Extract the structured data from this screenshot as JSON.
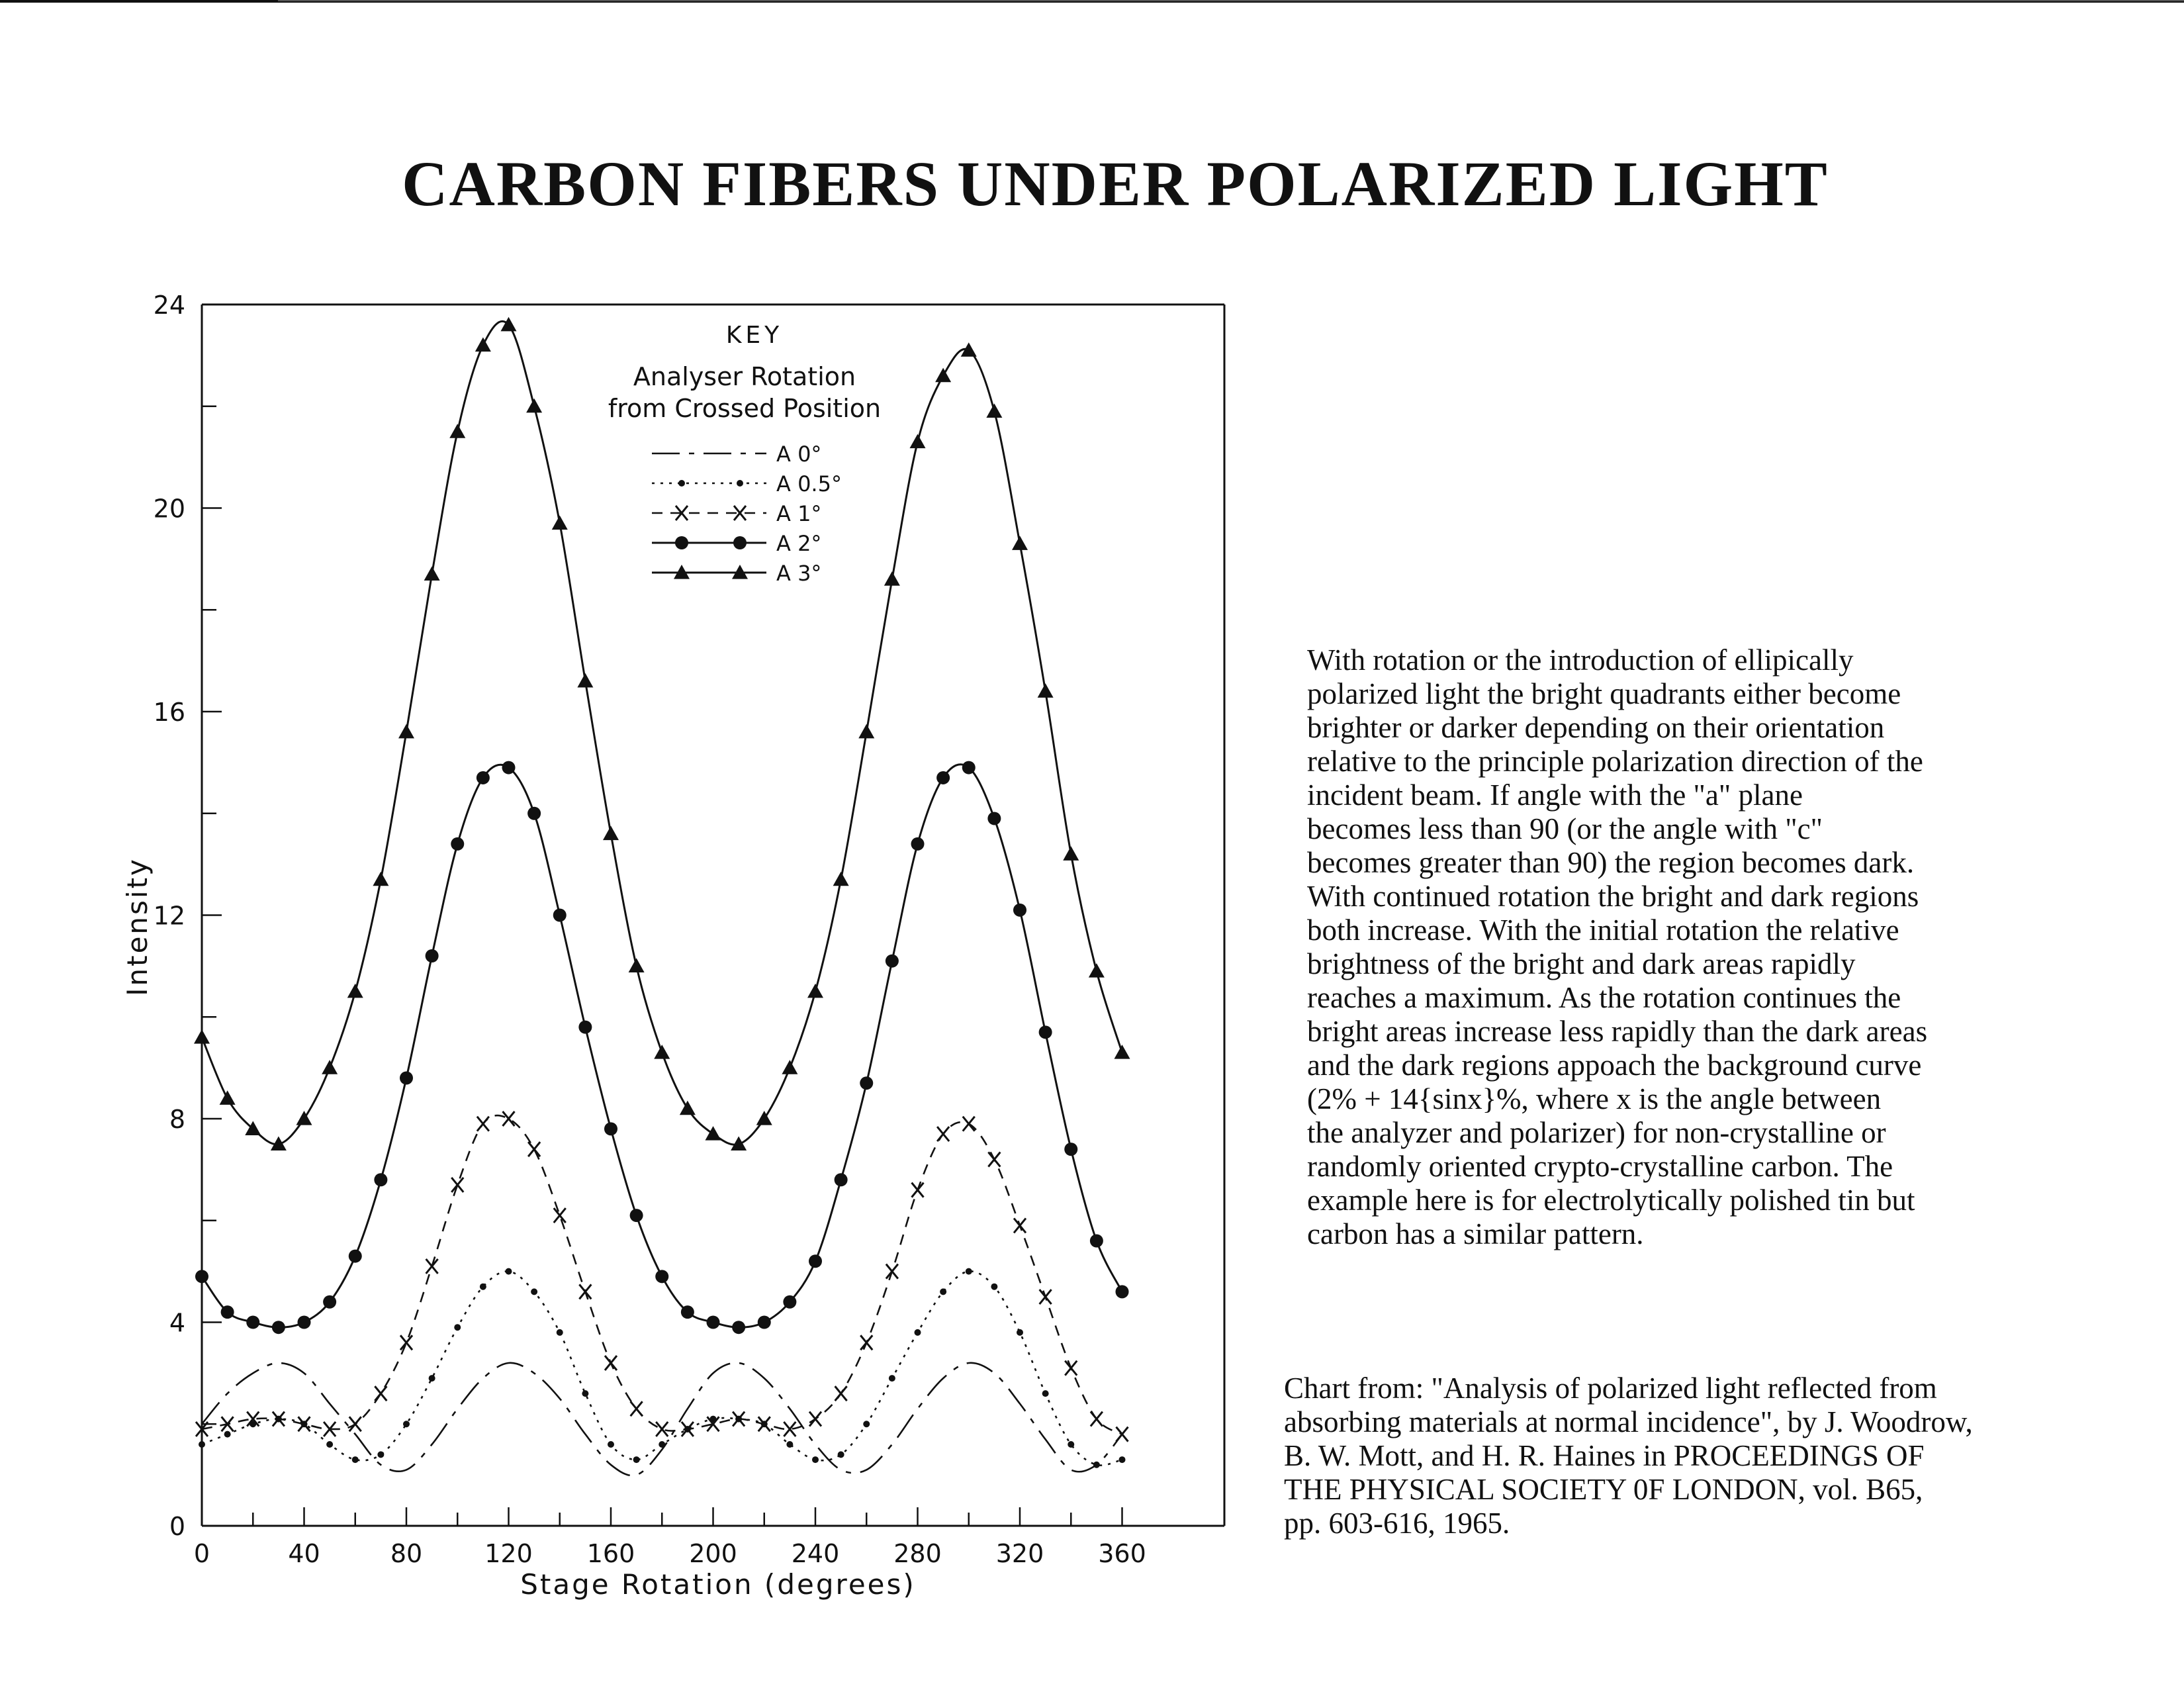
{
  "title": "CARBON FIBERS UNDER POLARIZED LIGHT",
  "description_lines": [
    "With rotation or the introduction of ellipically",
    "polarized light the bright quadrants either become",
    "brighter or darker depending on their orientation",
    "relative to the principle polarization direction of the",
    "incident beam.  If angle with the \"a\" plane",
    "becomes less than 90 (or the angle with \"c\"",
    "becomes greater than 90) the region becomes dark.",
    "With continued rotation the bright and dark regions",
    "both increase.  With the initial rotation the relative",
    "brightness of the bright and dark areas rapidly",
    "reaches a maximum.  As the rotation continues the",
    "bright areas increase less rapidly than the dark areas",
    "and the dark regions appoach the background curve",
    "(2% + 14{sinx}%, where x is the angle between",
    "the analyzer and polarizer) for non-crystalline or",
    "randomly oriented crypto-crystalline carbon.  The",
    "example here is for electrolytically polished tin but",
    "carbon has a similar pattern."
  ],
  "source_lines": [
    "Chart from:  \"Analysis of polarized light reflected from",
    "absorbing materials at normal incidence\", by J. Woodrow,",
    "B. W. Mott, and H. R. Haines in PROCEEDINGS OF",
    "THE PHYSICAL SOCIETY 0F LONDON, vol. B65,",
    "pp. 603-616, 1965."
  ],
  "chart_data": {
    "type": "line",
    "xlabel": "Stage Rotation  (degrees)",
    "ylabel": "Intensity",
    "xlim": [
      0,
      400
    ],
    "ylim": [
      0,
      24
    ],
    "x_ticks": [
      0,
      40,
      80,
      120,
      160,
      200,
      240,
      280,
      320,
      360
    ],
    "x_tick_labels": [
      "0",
      "40",
      "80",
      "120",
      "160",
      "200",
      "240",
      "280",
      "320",
      "360"
    ],
    "y_ticks": [
      0,
      4,
      8,
      12,
      16,
      20,
      24
    ],
    "y_tick_labels": [
      "0",
      "4",
      "8",
      "12",
      "16",
      "20",
      "24"
    ],
    "grid": false,
    "legend": {
      "placement": "top-center",
      "title": "KEY",
      "subtitle": [
        "Analyser Rotation",
        "from Crossed Position"
      ]
    },
    "series": [
      {
        "name": "A 0°",
        "style": "dash-dot",
        "marker": "none",
        "x": [
          0,
          10,
          20,
          30,
          40,
          50,
          60,
          70,
          80,
          90,
          100,
          110,
          120,
          130,
          140,
          150,
          160,
          170,
          180,
          190,
          200,
          210,
          220,
          230,
          240,
          250,
          260,
          270,
          280,
          290,
          300,
          310,
          320,
          330,
          340,
          350,
          360
        ],
        "y": [
          2.0,
          2.6,
          3.0,
          3.2,
          3.0,
          2.4,
          1.8,
          1.2,
          1.1,
          1.6,
          2.3,
          2.9,
          3.2,
          3.0,
          2.5,
          1.8,
          1.2,
          1.0,
          1.5,
          2.3,
          3.0,
          3.2,
          2.9,
          2.3,
          1.6,
          1.1,
          1.1,
          1.6,
          2.3,
          2.9,
          3.2,
          3.0,
          2.4,
          1.7,
          1.1,
          1.2,
          1.8
        ]
      },
      {
        "name": "A 0.5°",
        "style": "dotted",
        "marker": "dot",
        "x": [
          0,
          10,
          20,
          30,
          40,
          50,
          60,
          70,
          80,
          90,
          100,
          110,
          120,
          130,
          140,
          150,
          160,
          170,
          180,
          190,
          200,
          210,
          220,
          230,
          240,
          250,
          260,
          270,
          280,
          290,
          300,
          310,
          320,
          330,
          340,
          350,
          360
        ],
        "y": [
          1.6,
          1.8,
          2.0,
          2.1,
          2.0,
          1.6,
          1.3,
          1.4,
          2.0,
          2.9,
          3.9,
          4.7,
          5.0,
          4.6,
          3.8,
          2.6,
          1.6,
          1.3,
          1.6,
          1.9,
          2.1,
          2.1,
          2.0,
          1.6,
          1.3,
          1.4,
          2.0,
          2.9,
          3.8,
          4.6,
          5.0,
          4.7,
          3.8,
          2.6,
          1.6,
          1.2,
          1.3
        ]
      },
      {
        "name": "A 1°",
        "style": "dashed",
        "marker": "x",
        "x": [
          0,
          10,
          20,
          30,
          40,
          50,
          60,
          70,
          80,
          90,
          100,
          110,
          120,
          130,
          140,
          150,
          160,
          170,
          180,
          190,
          200,
          210,
          220,
          230,
          240,
          250,
          260,
          270,
          280,
          290,
          300,
          310,
          320,
          330,
          340,
          350,
          360
        ],
        "y": [
          1.9,
          2.0,
          2.1,
          2.1,
          2.0,
          1.9,
          2.0,
          2.6,
          3.6,
          5.1,
          6.7,
          7.9,
          8.0,
          7.4,
          6.1,
          4.6,
          3.2,
          2.3,
          1.9,
          1.9,
          2.0,
          2.1,
          2.0,
          1.9,
          2.1,
          2.6,
          3.6,
          5.0,
          6.6,
          7.7,
          7.9,
          7.2,
          5.9,
          4.5,
          3.1,
          2.1,
          1.8
        ]
      },
      {
        "name": "A 2°",
        "style": "solid",
        "marker": "circle",
        "x": [
          0,
          10,
          20,
          30,
          40,
          50,
          60,
          70,
          80,
          90,
          100,
          110,
          120,
          130,
          140,
          150,
          160,
          170,
          180,
          190,
          200,
          210,
          220,
          230,
          240,
          250,
          260,
          270,
          280,
          290,
          300,
          310,
          320,
          330,
          340,
          350,
          360
        ],
        "y": [
          4.9,
          4.2,
          4.0,
          3.9,
          4.0,
          4.4,
          5.3,
          6.8,
          8.8,
          11.2,
          13.4,
          14.7,
          14.9,
          14.0,
          12.0,
          9.8,
          7.8,
          6.1,
          4.9,
          4.2,
          4.0,
          3.9,
          4.0,
          4.4,
          5.2,
          6.8,
          8.7,
          11.1,
          13.4,
          14.7,
          14.9,
          13.9,
          12.1,
          9.7,
          7.4,
          5.6,
          4.6
        ]
      },
      {
        "name": "A 3°",
        "style": "solid",
        "marker": "triangle",
        "x": [
          0,
          10,
          20,
          30,
          40,
          50,
          60,
          70,
          80,
          90,
          100,
          110,
          120,
          130,
          140,
          150,
          160,
          170,
          180,
          190,
          200,
          210,
          220,
          230,
          240,
          250,
          260,
          270,
          280,
          290,
          300,
          310,
          320,
          330,
          340,
          350,
          360
        ],
        "y": [
          9.6,
          8.4,
          7.8,
          7.5,
          8.0,
          9.0,
          10.5,
          12.7,
          15.6,
          18.7,
          21.5,
          23.2,
          23.6,
          22.0,
          19.7,
          16.6,
          13.6,
          11.0,
          9.3,
          8.2,
          7.7,
          7.5,
          8.0,
          9.0,
          10.5,
          12.7,
          15.6,
          18.6,
          21.3,
          22.6,
          23.1,
          21.9,
          19.3,
          16.4,
          13.2,
          10.9,
          9.3
        ]
      }
    ]
  }
}
